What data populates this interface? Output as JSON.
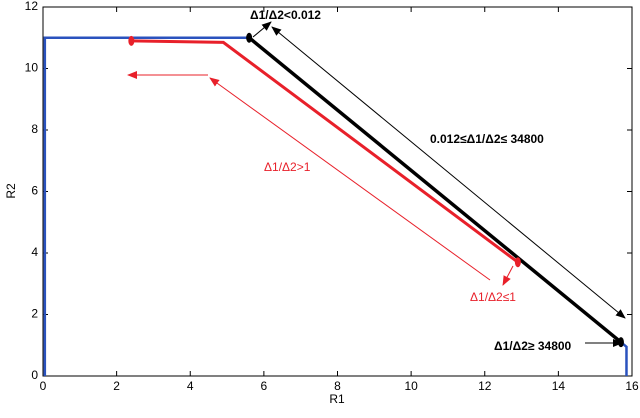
{
  "chart_data": {
    "type": "line",
    "x_label": "R1",
    "y_label": "R2",
    "xlim": [
      0,
      16
    ],
    "ylim": [
      0,
      12
    ],
    "xticks": [
      0,
      2,
      4,
      6,
      8,
      10,
      12,
      14,
      16
    ],
    "yticks": [
      0,
      2,
      4,
      6,
      8,
      10,
      12
    ],
    "series": [
      {
        "color": "#2a52be",
        "x": [
          0.05,
          0.05,
          5.6
        ],
        "y": [
          0,
          11,
          11
        ]
      },
      {
        "color": "#000000",
        "x": [
          5.6,
          15.7
        ],
        "y": [
          11,
          1.1
        ],
        "width": 3.5
      },
      {
        "color": "#2a52be",
        "x": [
          15.7,
          15.85,
          15.85
        ],
        "y": [
          1.1,
          0.95,
          0
        ]
      },
      {
        "color": "#e8202a",
        "x": [
          2.4,
          4.9,
          12.9
        ],
        "y": [
          10.9,
          10.85,
          3.7
        ],
        "width": 3
      }
    ],
    "points": [
      {
        "color": "#e8202a",
        "x": 2.4,
        "y": 10.9
      },
      {
        "color": "#e8202a",
        "x": 12.9,
        "y": 3.7
      },
      {
        "color": "#000000",
        "x": 5.6,
        "y": 11
      },
      {
        "color": "#000000",
        "x": 15.7,
        "y": 1.1
      }
    ],
    "annotations": [
      "Δ1/Δ2<0.012",
      "0.012≤Δ1/Δ2≤ 34800",
      "Δ1/Δ2>1",
      "Δ1/Δ2≤1",
      "Δ1/Δ2≥ 34800"
    ]
  }
}
